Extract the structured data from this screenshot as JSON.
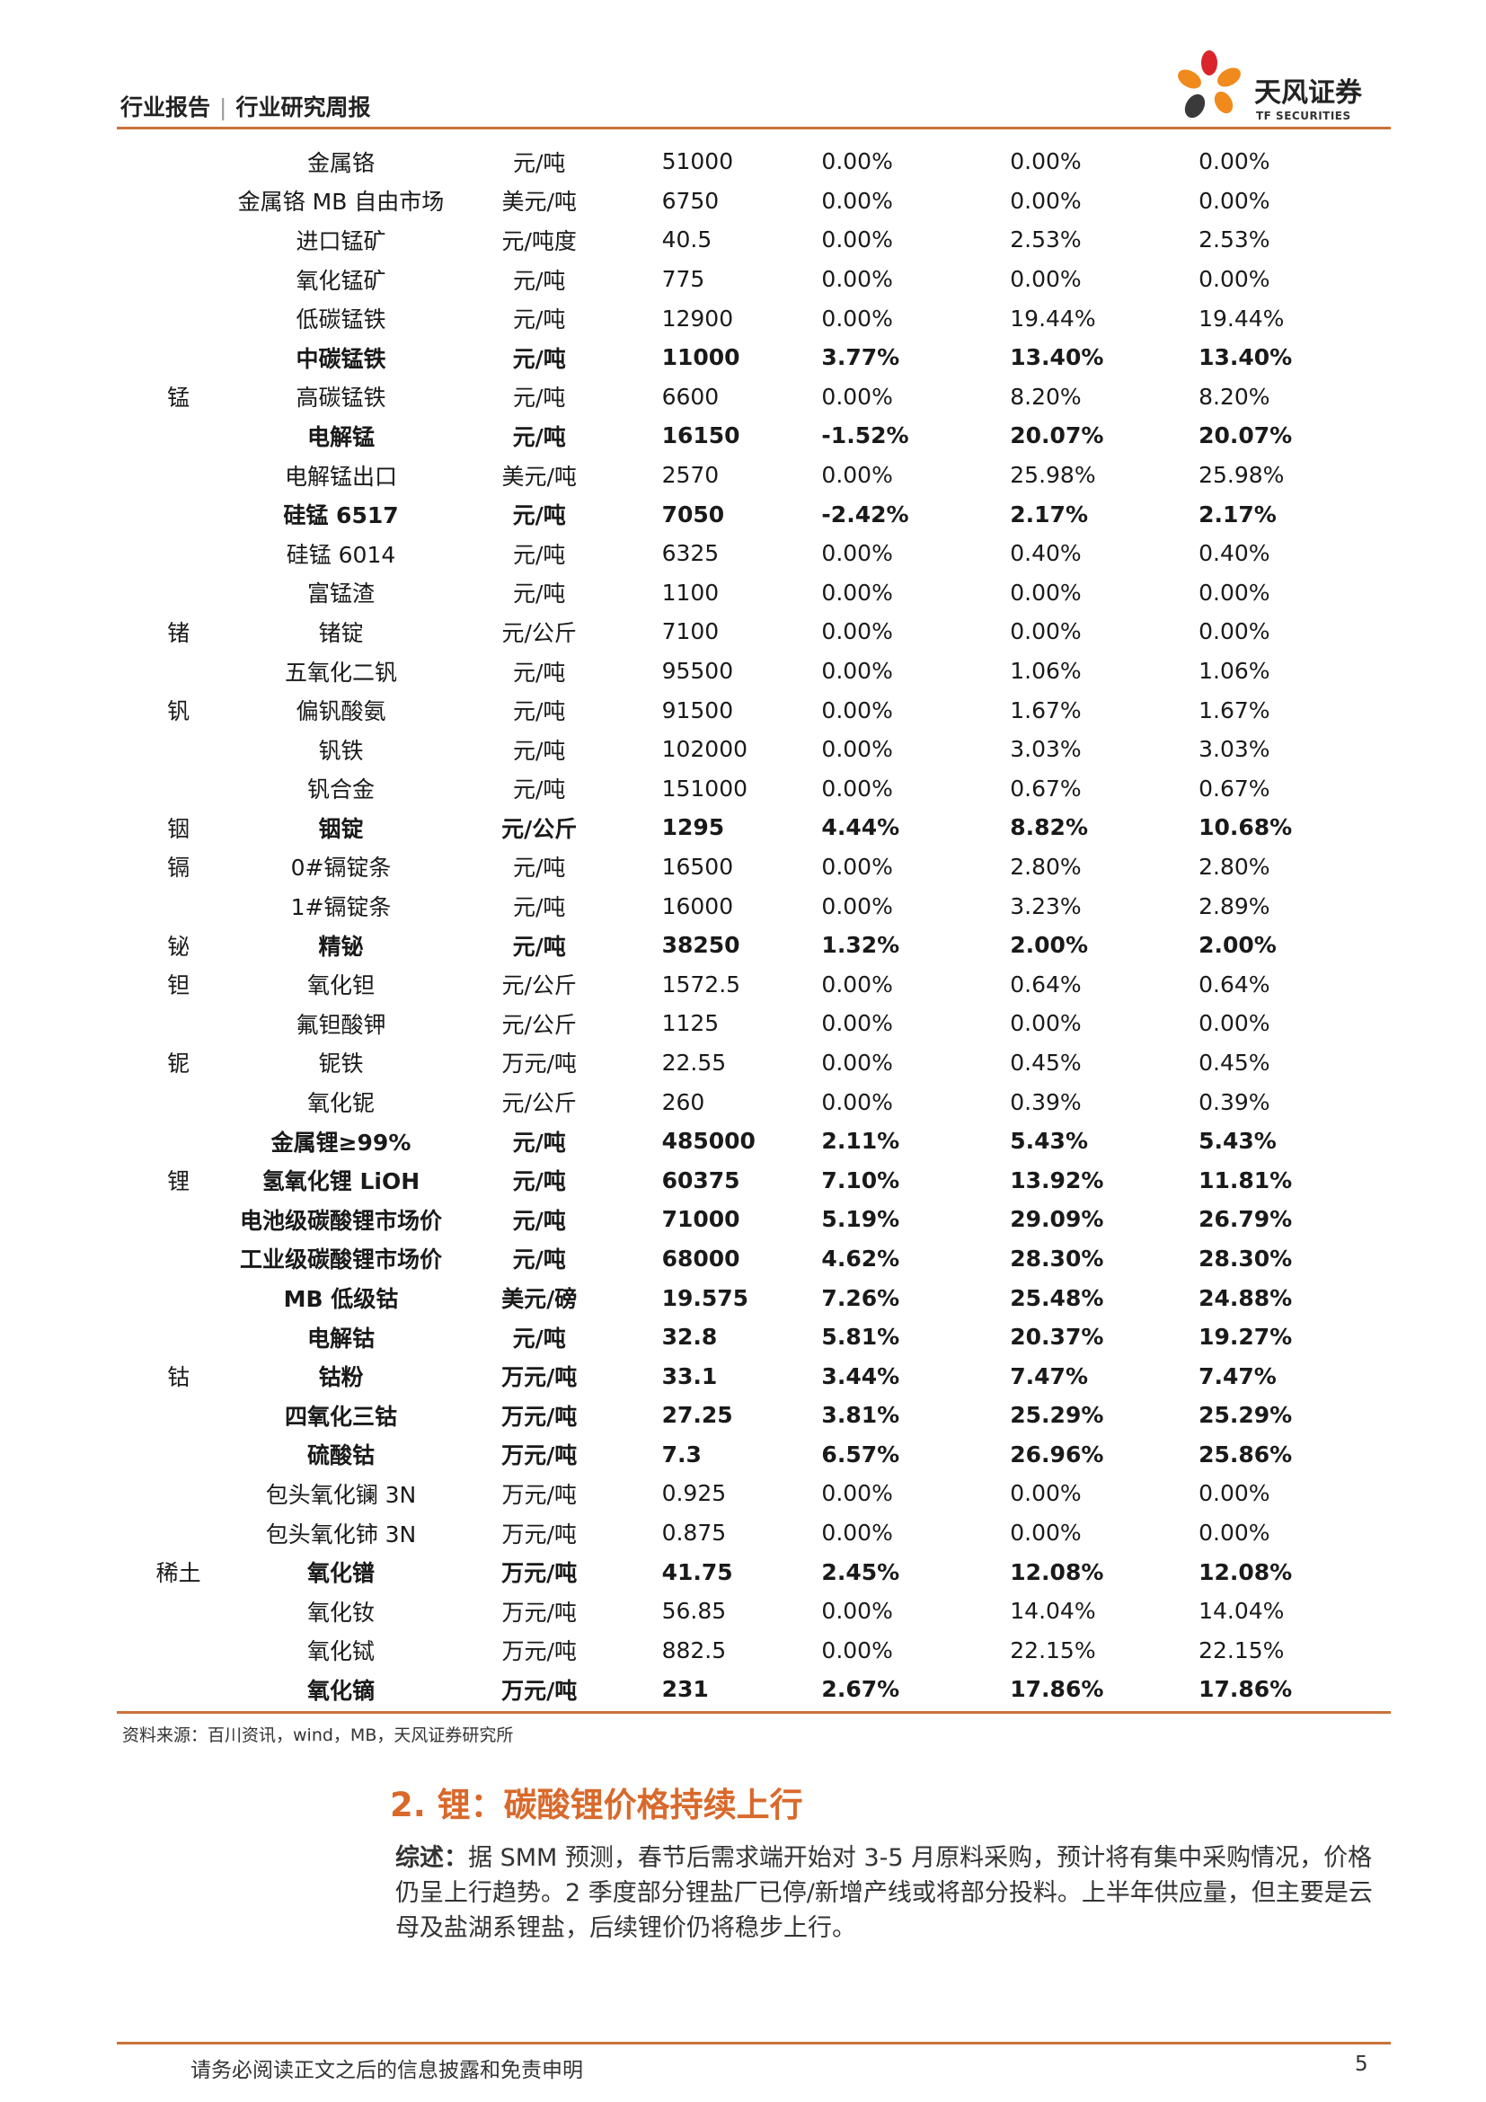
{
  "header": {
    "report_type": "行业报告",
    "separator": "|",
    "report_subtype": "行业研究周报",
    "logo_text": "天风证券",
    "logo_subtext": "TF SECURITIES"
  },
  "table": {
    "rows": [
      {
        "group": "",
        "name": "金属铬",
        "unit": "元/吨",
        "value": "51000",
        "c1": "0.00%",
        "c2": "0.00%",
        "c3": "0.00%",
        "bold": false
      },
      {
        "group": "",
        "name": "金属铬 MB 自由市场",
        "unit": "美元/吨",
        "value": "6750",
        "c1": "0.00%",
        "c2": "0.00%",
        "c3": "0.00%",
        "bold": false
      },
      {
        "group": "",
        "name": "进口锰矿",
        "unit": "元/吨度",
        "value": "40.5",
        "c1": "0.00%",
        "c2": "2.53%",
        "c3": "2.53%",
        "bold": false
      },
      {
        "group": "",
        "name": "氧化锰矿",
        "unit": "元/吨",
        "value": "775",
        "c1": "0.00%",
        "c2": "0.00%",
        "c3": "0.00%",
        "bold": false
      },
      {
        "group": "",
        "name": "低碳锰铁",
        "unit": "元/吨",
        "value": "12900",
        "c1": "0.00%",
        "c2": "19.44%",
        "c3": "19.44%",
        "bold": false
      },
      {
        "group": "",
        "name": "中碳锰铁",
        "unit": "元/吨",
        "value": "11000",
        "c1": "3.77%",
        "c2": "13.40%",
        "c3": "13.40%",
        "bold": true
      },
      {
        "group": "锰",
        "name": "高碳锰铁",
        "unit": "元/吨",
        "value": "6600",
        "c1": "0.00%",
        "c2": "8.20%",
        "c3": "8.20%",
        "bold": false
      },
      {
        "group": "",
        "name": "电解锰",
        "unit": "元/吨",
        "value": "16150",
        "c1": "-1.52%",
        "c2": "20.07%",
        "c3": "20.07%",
        "bold": true
      },
      {
        "group": "",
        "name": "电解锰出口",
        "unit": "美元/吨",
        "value": "2570",
        "c1": "0.00%",
        "c2": "25.98%",
        "c3": "25.98%",
        "bold": false
      },
      {
        "group": "",
        "name": "硅锰 6517",
        "unit": "元/吨",
        "value": "7050",
        "c1": "-2.42%",
        "c2": "2.17%",
        "c3": "2.17%",
        "bold": true
      },
      {
        "group": "",
        "name": "硅锰 6014",
        "unit": "元/吨",
        "value": "6325",
        "c1": "0.00%",
        "c2": "0.40%",
        "c3": "0.40%",
        "bold": false
      },
      {
        "group": "",
        "name": "富锰渣",
        "unit": "元/吨",
        "value": "1100",
        "c1": "0.00%",
        "c2": "0.00%",
        "c3": "0.00%",
        "bold": false
      },
      {
        "group": "锗",
        "name": "锗锭",
        "unit": "元/公斤",
        "value": "7100",
        "c1": "0.00%",
        "c2": "0.00%",
        "c3": "0.00%",
        "bold": false
      },
      {
        "group": "",
        "name": "五氧化二钒",
        "unit": "元/吨",
        "value": "95500",
        "c1": "0.00%",
        "c2": "1.06%",
        "c3": "1.06%",
        "bold": false
      },
      {
        "group": "钒",
        "name": "偏钒酸氨",
        "unit": "元/吨",
        "value": "91500",
        "c1": "0.00%",
        "c2": "1.67%",
        "c3": "1.67%",
        "bold": false
      },
      {
        "group": "",
        "name": "钒铁",
        "unit": "元/吨",
        "value": "102000",
        "c1": "0.00%",
        "c2": "3.03%",
        "c3": "3.03%",
        "bold": false
      },
      {
        "group": "",
        "name": "钒合金",
        "unit": "元/吨",
        "value": "151000",
        "c1": "0.00%",
        "c2": "0.67%",
        "c3": "0.67%",
        "bold": false
      },
      {
        "group": "铟",
        "name": "铟锭",
        "unit": "元/公斤",
        "value": "1295",
        "c1": "4.44%",
        "c2": "8.82%",
        "c3": "10.68%",
        "bold": true
      },
      {
        "group": "镉",
        "name": "0#镉锭条",
        "unit": "元/吨",
        "value": "16500",
        "c1": "0.00%",
        "c2": "2.80%",
        "c3": "2.80%",
        "bold": false
      },
      {
        "group": "",
        "name": "1#镉锭条",
        "unit": "元/吨",
        "value": "16000",
        "c1": "0.00%",
        "c2": "3.23%",
        "c3": "2.89%",
        "bold": false
      },
      {
        "group": "铋",
        "name": "精铋",
        "unit": "元/吨",
        "value": "38250",
        "c1": "1.32%",
        "c2": "2.00%",
        "c3": "2.00%",
        "bold": true
      },
      {
        "group": "钽",
        "name": "氧化钽",
        "unit": "元/公斤",
        "value": "1572.5",
        "c1": "0.00%",
        "c2": "0.64%",
        "c3": "0.64%",
        "bold": false
      },
      {
        "group": "",
        "name": "氟钽酸钾",
        "unit": "元/公斤",
        "value": "1125",
        "c1": "0.00%",
        "c2": "0.00%",
        "c3": "0.00%",
        "bold": false
      },
      {
        "group": "铌",
        "name": "铌铁",
        "unit": "万元/吨",
        "value": "22.55",
        "c1": "0.00%",
        "c2": "0.45%",
        "c3": "0.45%",
        "bold": false
      },
      {
        "group": "",
        "name": "氧化铌",
        "unit": "元/公斤",
        "value": "260",
        "c1": "0.00%",
        "c2": "0.39%",
        "c3": "0.39%",
        "bold": false
      },
      {
        "group": "",
        "name": "金属锂≥99%",
        "unit": "元/吨",
        "value": "485000",
        "c1": "2.11%",
        "c2": "5.43%",
        "c3": "5.43%",
        "bold": true
      },
      {
        "group": "锂",
        "name": "氢氧化锂 LiOH",
        "unit": "元/吨",
        "value": "60375",
        "c1": "7.10%",
        "c2": "13.92%",
        "c3": "11.81%",
        "bold": true
      },
      {
        "group": "",
        "name": "电池级碳酸锂市场价",
        "unit": "元/吨",
        "value": "71000",
        "c1": "5.19%",
        "c2": "29.09%",
        "c3": "26.79%",
        "bold": true
      },
      {
        "group": "",
        "name": "工业级碳酸锂市场价",
        "unit": "元/吨",
        "value": "68000",
        "c1": "4.62%",
        "c2": "28.30%",
        "c3": "28.30%",
        "bold": true
      },
      {
        "group": "",
        "name": "MB 低级钴",
        "unit": "美元/磅",
        "value": "19.575",
        "c1": "7.26%",
        "c2": "25.48%",
        "c3": "24.88%",
        "bold": true
      },
      {
        "group": "",
        "name": "电解钴",
        "unit": "元/吨",
        "value": "32.8",
        "c1": "5.81%",
        "c2": "20.37%",
        "c3": "19.27%",
        "bold": true
      },
      {
        "group": "钴",
        "name": "钴粉",
        "unit": "万元/吨",
        "value": "33.1",
        "c1": "3.44%",
        "c2": "7.47%",
        "c3": "7.47%",
        "bold": true
      },
      {
        "group": "",
        "name": "四氧化三钴",
        "unit": "万元/吨",
        "value": "27.25",
        "c1": "3.81%",
        "c2": "25.29%",
        "c3": "25.29%",
        "bold": true
      },
      {
        "group": "",
        "name": "硫酸钴",
        "unit": "万元/吨",
        "value": "7.3",
        "c1": "6.57%",
        "c2": "26.96%",
        "c3": "25.86%",
        "bold": true
      },
      {
        "group": "",
        "name": "包头氧化镧 3N",
        "unit": "万元/吨",
        "value": "0.925",
        "c1": "0.00%",
        "c2": "0.00%",
        "c3": "0.00%",
        "bold": false
      },
      {
        "group": "",
        "name": "包头氧化铈 3N",
        "unit": "万元/吨",
        "value": "0.875",
        "c1": "0.00%",
        "c2": "0.00%",
        "c3": "0.00%",
        "bold": false
      },
      {
        "group": "稀土",
        "name": "氧化镨",
        "unit": "万元/吨",
        "value": "41.75",
        "c1": "2.45%",
        "c2": "12.08%",
        "c3": "12.08%",
        "bold": true
      },
      {
        "group": "",
        "name": "氧化钕",
        "unit": "万元/吨",
        "value": "56.85",
        "c1": "0.00%",
        "c2": "14.04%",
        "c3": "14.04%",
        "bold": false
      },
      {
        "group": "",
        "name": "氧化铽",
        "unit": "万元/吨",
        "value": "882.5",
        "c1": "0.00%",
        "c2": "22.15%",
        "c3": "22.15%",
        "bold": false
      },
      {
        "group": "",
        "name": "氧化镝",
        "unit": "万元/吨",
        "value": "231",
        "c1": "2.67%",
        "c2": "17.86%",
        "c3": "17.86%",
        "bold": true
      }
    ]
  },
  "source_note": "资料来源：百川资讯，wind，MB，天风证券研究所",
  "section": {
    "title": "2. 锂：碳酸锂价格持续上行",
    "lead": "综述：",
    "body": "据 SMM 预测，春节后需求端开始对 3-5 月原料采购，预计将有集中采购情况，价格仍呈上行趋势。2 季度部分锂盐厂已停/新增产线或将部分投料。上半年供应量，但主要是云母及盐湖系锂盐，后续锂价仍将稳步上行。"
  },
  "footer": {
    "disclaimer": "请务必阅读正文之后的信息披露和免责申明",
    "page_number": "5"
  },
  "colors": {
    "accent": "#c8723a",
    "section_title": "#d9692b",
    "logo_red": "#d9252a",
    "logo_orange": "#f08a1c",
    "logo_dark": "#3a3a3a"
  }
}
